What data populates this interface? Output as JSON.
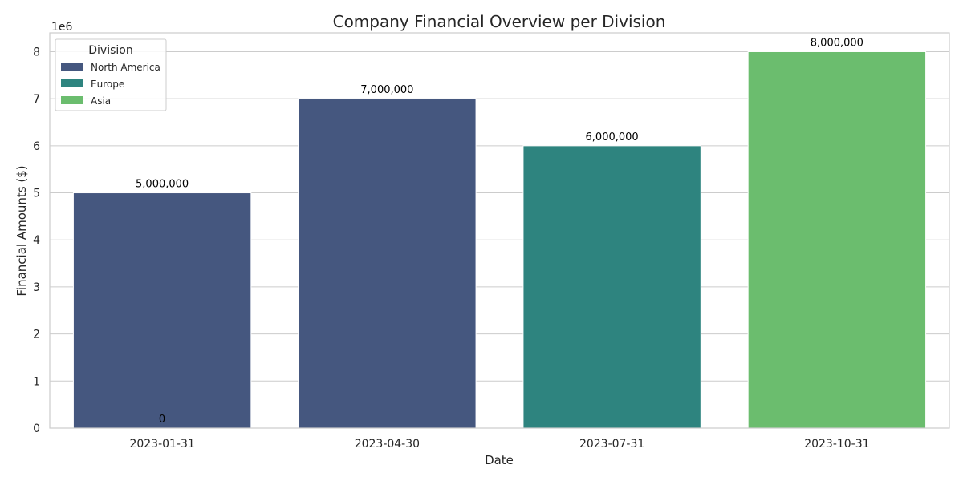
{
  "chart_data": {
    "type": "bar",
    "title": "Company Financial Overview per Division",
    "xlabel": "Date",
    "ylabel": "Financial Amounts ($)",
    "y_scale_label": "1e6",
    "categories": [
      "2023-01-31",
      "2023-04-30",
      "2023-07-31",
      "2023-10-31"
    ],
    "values": [
      5000000,
      7000000,
      6000000,
      8000000
    ],
    "bar_divisions": [
      "North America",
      "North America",
      "Europe",
      "Asia"
    ],
    "bar_labels": [
      "5,000,000",
      "7,000,000",
      "6,000,000",
      "8,000,000"
    ],
    "extra_label": "0",
    "ylim": [
      0,
      8400000
    ],
    "yticks": [
      0,
      1,
      2,
      3,
      4,
      5,
      6,
      7,
      8
    ],
    "grid": true,
    "legend": {
      "title": "Division",
      "placement": "top-left",
      "entries": [
        {
          "name": "North America",
          "color": "#45577f"
        },
        {
          "name": "Europe",
          "color": "#2e847f"
        },
        {
          "name": "Asia",
          "color": "#6bbd6e"
        }
      ]
    }
  }
}
